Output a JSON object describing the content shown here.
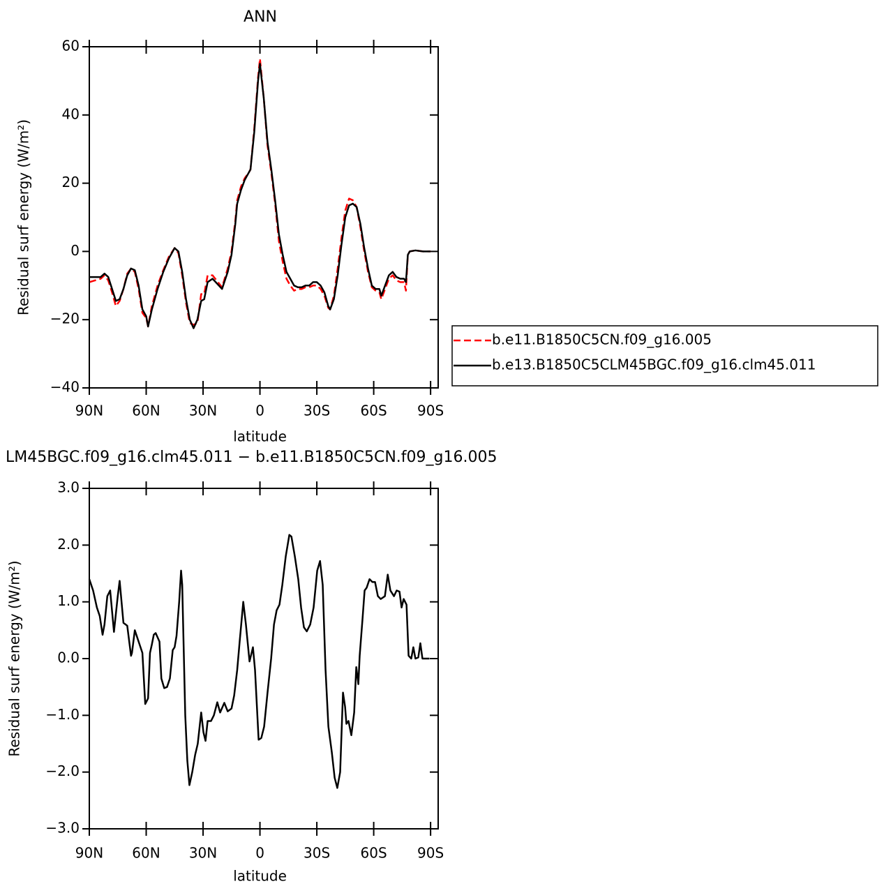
{
  "chart_data": [
    {
      "type": "line",
      "title": "ANN",
      "x_label": "latitude",
      "y_label": "Residual surf energy (W/m²)",
      "xlim": [
        90,
        -94
      ],
      "xticks": [
        {
          "value": 90,
          "label": "90N"
        },
        {
          "value": 60,
          "label": "60N"
        },
        {
          "value": 30,
          "label": "30N"
        },
        0,
        {
          "value": -30,
          "label": "30S"
        },
        {
          "value": -60,
          "label": "60S"
        },
        {
          "value": -90,
          "label": "90S"
        }
      ],
      "ylim": [
        -40,
        60
      ],
      "yticks": [
        {
          "value": -40,
          "label": "−40"
        },
        {
          "value": -20,
          "label": "−20"
        },
        0,
        20,
        40,
        60
      ],
      "legend": "right",
      "x": [
        90,
        87,
        84,
        82,
        80,
        78,
        76,
        74,
        72,
        70,
        68,
        66,
        64,
        62,
        60,
        59,
        57,
        54,
        51,
        48,
        45,
        43,
        41,
        39,
        37,
        35,
        33,
        31,
        29.4,
        27.6,
        25,
        20,
        17,
        15,
        13,
        12,
        10,
        8,
        6,
        5,
        3,
        1,
        0,
        -2,
        -4,
        -6,
        -8,
        -10,
        -12,
        -14,
        -16,
        -18,
        -20,
        -22,
        -24,
        -26,
        -28,
        -30,
        -32,
        -34,
        -36,
        -37,
        -39,
        -41,
        -43,
        -45,
        -47,
        -49,
        -51,
        -53,
        -55,
        -57,
        -59,
        -61,
        -63,
        -64,
        -66,
        -68,
        -70,
        -72,
        -74,
        -76,
        -77,
        -78,
        -79,
        -82,
        -86,
        -90
      ],
      "series": [
        {
          "name": "b.e11.B1850C5CN.f09_g16.005",
          "color": "#ff0000",
          "dash": "dashed",
          "values": [
            -9,
            -8.5,
            -8,
            -7,
            -8.5,
            -12,
            -16,
            -14.5,
            -11,
            -6.5,
            -5,
            -6,
            -11,
            -18,
            -19.5,
            -22,
            -16,
            -10,
            -5.5,
            -1.5,
            1,
            -0.5,
            -7,
            -15,
            -21,
            -21.5,
            -21,
            -12.5,
            -12.5,
            -7,
            -7,
            -10.5,
            -5,
            0,
            9,
            15,
            19,
            21.5,
            23,
            24,
            36,
            51,
            56.5,
            45,
            31,
            23,
            14,
            3,
            -3,
            -8,
            -10,
            -11.5,
            -11,
            -11,
            -10.5,
            -10.5,
            -10,
            -10,
            -11,
            -13,
            -16.5,
            -17,
            -13,
            -5,
            4,
            12,
            15.5,
            15,
            13,
            7,
            0,
            -6,
            -10.5,
            -11.5,
            -12,
            -14,
            -11,
            -8,
            -7,
            -8.5,
            -9,
            -9,
            -11.5,
            -1,
            0,
            0.3,
            0,
            0
          ]
        },
        {
          "name": "b.e13.B1850C5CLM45BGC.f09_g16.clm45.011",
          "color": "#000000",
          "dash": "solid",
          "values": [
            -7.5,
            -7.5,
            -7.5,
            -6.5,
            -7.5,
            -11,
            -14.5,
            -14,
            -11,
            -7,
            -5,
            -5.5,
            -10,
            -17,
            -19,
            -22,
            -17,
            -11,
            -6,
            -2,
            1,
            0,
            -6,
            -14,
            -20,
            -22.5,
            -20,
            -14.5,
            -14,
            -9,
            -8,
            -11,
            -6,
            -1,
            8,
            14,
            18,
            21,
            23,
            24,
            35,
            50,
            55,
            45,
            32,
            24,
            15,
            5,
            -1,
            -6,
            -8,
            -10,
            -10.5,
            -10.5,
            -10,
            -10,
            -9,
            -9,
            -10,
            -12,
            -16,
            -17,
            -14,
            -7,
            2,
            10,
            13.5,
            14,
            13,
            8,
            1,
            -5,
            -10,
            -11,
            -11,
            -13,
            -10,
            -7,
            -6,
            -7.5,
            -8,
            -8,
            -9,
            -1,
            0,
            0.3,
            0,
            0
          ]
        }
      ]
    },
    {
      "type": "line",
      "title": "LM45BGC.f09_g16.clm45.011 − b.e11.B1850C5CN.f09_g16.005",
      "x_label": "latitude",
      "y_label": "Residual surf energy (W/m²)",
      "xlim": [
        90,
        -94
      ],
      "xticks": [
        {
          "value": 90,
          "label": "90N"
        },
        {
          "value": 60,
          "label": "60N"
        },
        {
          "value": 30,
          "label": "30N"
        },
        0,
        {
          "value": -30,
          "label": "30S"
        },
        {
          "value": -60,
          "label": "60S"
        },
        {
          "value": -90,
          "label": "90S"
        }
      ],
      "ylim": [
        -3,
        3
      ],
      "yticks": [
        {
          "value": -3,
          "label": "−3.0"
        },
        {
          "value": -2,
          "label": "−2.0"
        },
        {
          "value": -1,
          "label": "−1.0"
        },
        {
          "value": 0,
          "label": "0.0"
        },
        {
          "value": 1,
          "label": "1.0"
        },
        {
          "value": 2,
          "label": "2.0"
        },
        {
          "value": 3,
          "label": "3.0"
        }
      ],
      "x": [
        90,
        88,
        86,
        84.5,
        83,
        82,
        80.5,
        79,
        77,
        75,
        74,
        72,
        70,
        68,
        67.5,
        66,
        64,
        62,
        60.5,
        59,
        58,
        57,
        56,
        55,
        53,
        52,
        50.5,
        49,
        47.5,
        46,
        45,
        44,
        42.6,
        41.6,
        41,
        39.4,
        38.3,
        37.2,
        35.7,
        34.2,
        32.8,
        31,
        29.8,
        28.7,
        27.6,
        25.8,
        24.3,
        22.5,
        21,
        18.8,
        17,
        15,
        13.6,
        12,
        10.7,
        8.8,
        7.4,
        5.5,
        4.4,
        3.7,
        2.6,
        0.7,
        -0.7,
        -2.2,
        -4,
        -5.9,
        -7.4,
        -8.8,
        -10.3,
        -11.8,
        -13.6,
        -15.5,
        -16.6,
        -18.4,
        -20.2,
        -21.7,
        -23.2,
        -24.7,
        -26.5,
        -28.3,
        -30.2,
        -31.7,
        -33.1,
        -34.6,
        -36.1,
        -37.9,
        -39.4,
        -40.8,
        -42.3,
        -43.8,
        -44.9,
        -45.6,
        -46.7,
        -48.2,
        -49.7,
        -50.8,
        -51.9,
        -52.6,
        -54.1,
        -55.2,
        -56.3,
        -57.8,
        -59.3,
        -60.7,
        -62.2,
        -63.7,
        -65.9,
        -67.4,
        -68.8,
        -70.7,
        -72.1,
        -73.6,
        -74.7,
        -75.8,
        -77.3,
        -78.4,
        -79.8,
        -80.9,
        -82,
        -83.5,
        -84.6,
        -85.7,
        -89.4
      ],
      "series": [
        {
          "color": "#000000",
          "dash": "solid",
          "values": [
            1.4,
            1.2,
            0.9,
            0.75,
            0.42,
            0.6,
            1.1,
            1.2,
            0.47,
            1.1,
            1.37,
            0.63,
            0.58,
            0.05,
            0.1,
            0.5,
            0.3,
            0.1,
            -0.8,
            -0.7,
            0.1,
            0.25,
            0.42,
            0.45,
            0.3,
            -0.35,
            -0.52,
            -0.5,
            -0.35,
            0.15,
            0.2,
            0.4,
            1,
            1.55,
            1.3,
            -1,
            -1.8,
            -2.23,
            -2,
            -1.7,
            -1.5,
            -0.95,
            -1.3,
            -1.45,
            -1.1,
            -1.1,
            -1,
            -0.77,
            -0.95,
            -0.78,
            -0.93,
            -0.88,
            -0.65,
            -0.2,
            0.3,
            1,
            0.6,
            -0.05,
            0.1,
            0.2,
            -0.2,
            -1.43,
            -1.4,
            -1.2,
            -0.6,
            0,
            0.6,
            0.85,
            0.95,
            1.3,
            1.8,
            2.18,
            2.15,
            1.8,
            1.4,
            0.9,
            0.55,
            0.48,
            0.6,
            0.9,
            1.55,
            1.72,
            1.3,
            -0.2,
            -1.2,
            -1.65,
            -2.1,
            -2.28,
            -2,
            -0.6,
            -0.85,
            -1.15,
            -1.1,
            -1.35,
            -0.95,
            -0.15,
            -0.45,
            0.05,
            0.7,
            1.2,
            1.25,
            1.4,
            1.35,
            1.35,
            1.1,
            1.05,
            1.1,
            1.48,
            1.2,
            1.1,
            1.2,
            1.18,
            0.9,
            1.05,
            0.95,
            0.05,
            0,
            0.2,
            0,
            0.02,
            0.27,
            0,
            0
          ]
        }
      ]
    }
  ]
}
